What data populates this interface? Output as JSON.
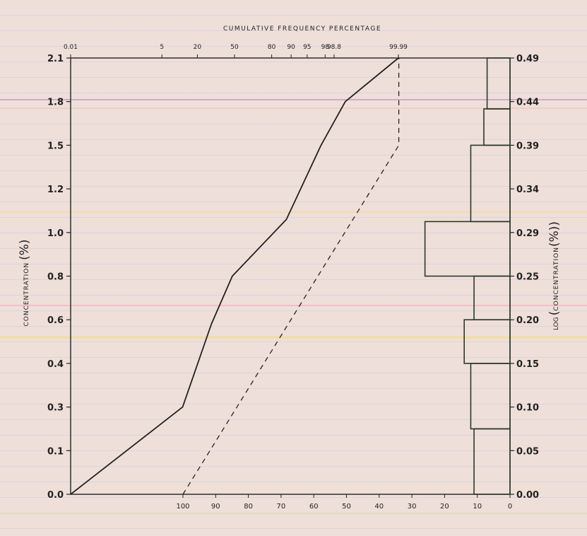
{
  "chart_data": {
    "type": "line",
    "top_axis_title": "CUMULATIVE FREQUENCY PERCENTAGE",
    "left_axis_title": "CONCENTRATION",
    "left_axis_unit": "(%)",
    "right_axis_title": "LOG",
    "right_axis_inner": "CONCENTRATION",
    "right_axis_unit": "(%)",
    "left_ticks": [
      "0.0",
      "0.1",
      "0.3",
      "0.4",
      "0.6",
      "0.8",
      "1.0",
      "1.2",
      "1.5",
      "1.8",
      "2.1"
    ],
    "right_ticks": [
      "0.00",
      "0.05",
      "0.10",
      "0.15",
      "0.20",
      "0.25",
      "0.29",
      "0.34",
      "0.39",
      "0.44",
      "0.49"
    ],
    "top_ticks": [
      {
        "label": "0.01",
        "pos": 0.01
      },
      {
        "label": "5",
        "pos": 5
      },
      {
        "label": "20",
        "pos": 20
      },
      {
        "label": "50",
        "pos": 50
      },
      {
        "label": "80",
        "pos": 80
      },
      {
        "label": "90",
        "pos": 90
      },
      {
        "label": "95",
        "pos": 95
      },
      {
        "label": "98",
        "pos": 98
      },
      {
        "label": "98.8",
        "pos": 98.8
      },
      {
        "label": "99.99",
        "pos": 99.99
      }
    ],
    "bottom_ticks": [
      "100",
      "90",
      "80",
      "70",
      "60",
      "50",
      "40",
      "30",
      "20",
      "10",
      "0"
    ],
    "cumulative_line": [
      {
        "cum": 0.01,
        "conc": 0.0
      },
      {
        "cum": 12,
        "conc": 0.3
      },
      {
        "cum": 30,
        "conc": 0.58
      },
      {
        "cum": 48,
        "conc": 0.8
      },
      {
        "cum": 88,
        "conc": 1.06
      },
      {
        "cum": 97.5,
        "conc": 1.5
      },
      {
        "cum": 99.4,
        "conc": 1.8
      },
      {
        "cum": 99.99,
        "conc": 2.1
      }
    ],
    "dashed_line": [
      {
        "freq": 100,
        "conc": 0.0
      },
      {
        "freq": 34,
        "conc": 1.5
      },
      {
        "freq": 34,
        "conc": 2.1
      }
    ],
    "histogram": [
      {
        "freq": 11,
        "conc_from": 0.0,
        "conc_to": 0.2
      },
      {
        "freq": 12,
        "conc_from": 0.2,
        "conc_to": 0.4
      },
      {
        "freq": 14,
        "conc_from": 0.4,
        "conc_to": 0.6
      },
      {
        "freq": 11,
        "conc_from": 0.6,
        "conc_to": 0.8
      },
      {
        "freq": 26,
        "conc_from": 0.8,
        "conc_to": 1.05
      },
      {
        "freq": 12,
        "conc_from": 1.05,
        "conc_to": 1.5
      },
      {
        "freq": 8,
        "conc_from": 1.5,
        "conc_to": 1.75
      },
      {
        "freq": 7,
        "conc_from": 1.75,
        "conc_to": 2.1
      }
    ],
    "bottom_xlim": [
      0,
      100
    ],
    "colors": {
      "line": "#222222",
      "histogram": "#2a3a2a",
      "axis": "#222222"
    }
  }
}
